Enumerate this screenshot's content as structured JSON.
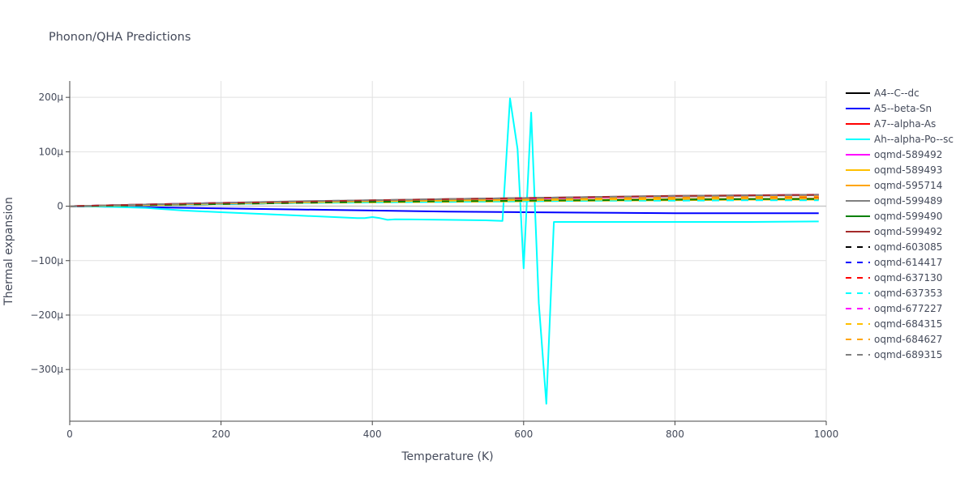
{
  "chart_data": {
    "type": "line",
    "title": "Phonon/QHA Predictions",
    "xlabel": "Temperature (K)",
    "ylabel": "Thermal expansion",
    "xlim": [
      0,
      1000
    ],
    "ylim": [
      -0.000395,
      0.00023
    ],
    "x_ticks": [
      0,
      200,
      400,
      600,
      800,
      1000
    ],
    "x_tick_labels": [
      "0",
      "200",
      "400",
      "600",
      "800",
      "1000"
    ],
    "y_ticks": [
      0.0002,
      0.0001,
      0,
      -0.0001,
      -0.0002,
      -0.0003
    ],
    "y_tick_labels": [
      "200μ",
      "100μ",
      "0",
      "−100μ",
      "−200μ",
      "−300μ"
    ],
    "grid": true,
    "legend_position": "right",
    "series": [
      {
        "name": "A4--C--dc",
        "color": "#000000",
        "dash": "solid",
        "x": [
          0,
          100,
          200,
          300,
          400,
          500,
          600,
          700,
          800,
          900,
          990
        ],
        "y": [
          0,
          3e-06,
          5e-06,
          7e-06,
          9e-06,
          1e-05,
          1.1e-05,
          1.2e-05,
          1.3e-05,
          1.3e-05,
          1.4e-05
        ]
      },
      {
        "name": "A5--beta-Sn",
        "color": "#0000ff",
        "dash": "solid",
        "x": [
          0,
          100,
          200,
          300,
          400,
          500,
          600,
          700,
          800,
          900,
          990
        ],
        "y": [
          0,
          -2e-06,
          -4e-06,
          -6e-06,
          -8e-06,
          -1e-05,
          -1.1e-05,
          -1.2e-05,
          -1.3e-05,
          -1.3e-05,
          -1.3e-05
        ]
      },
      {
        "name": "A7--alpha-As",
        "color": "#ff0000",
        "dash": "solid",
        "x": [
          0,
          100,
          200,
          300,
          400,
          500,
          600,
          700,
          800,
          900,
          990
        ],
        "y": [
          0,
          2e-06,
          4e-06,
          6e-06,
          8e-06,
          9e-06,
          1e-05,
          1.1e-05,
          1.2e-05,
          1.3e-05,
          1.4e-05
        ]
      },
      {
        "name": "Ah--alpha-Po--sc",
        "color": "#00ffff",
        "dash": "solid",
        "x": [
          0,
          50,
          100,
          140,
          150,
          200,
          250,
          300,
          350,
          380,
          390,
          400,
          410,
          420,
          430,
          500,
          550,
          572,
          582,
          592,
          600,
          610,
          620,
          630,
          640,
          700,
          800,
          900,
          990
        ],
        "y": [
          0,
          -1e-06,
          -3e-06,
          -7e-06,
          -8e-06,
          -1.1e-05,
          -1.4e-05,
          -1.7e-05,
          -2e-05,
          -2.2e-05,
          -2.2e-05,
          -2e-05,
          -2.2e-05,
          -2.5e-05,
          -2.4e-05,
          -2.5e-05,
          -2.6e-05,
          -2.7e-05,
          0.000198,
          0.000105,
          -0.000114,
          0.000172,
          -0.000178,
          -0.000363,
          -2.9e-05,
          -2.9e-05,
          -2.9e-05,
          -2.9e-05,
          -2.8e-05
        ]
      },
      {
        "name": "oqmd-589492",
        "color": "#ff00ff",
        "dash": "solid",
        "x": [
          0,
          100,
          200,
          300,
          400,
          500,
          600,
          700,
          800,
          900,
          990
        ],
        "y": [
          0,
          3e-06,
          6e-06,
          8e-06,
          1e-05,
          1.2e-05,
          1.4e-05,
          1.6e-05,
          1.8e-05,
          2e-05,
          2.1e-05
        ]
      },
      {
        "name": "oqmd-589493",
        "color": "#ffc000",
        "dash": "solid",
        "x": [
          0,
          100,
          200,
          300,
          400,
          500,
          600,
          700,
          800,
          900,
          990
        ],
        "y": [
          0,
          2e-06,
          4e-06,
          6e-06,
          7e-06,
          8e-06,
          9e-06,
          1e-05,
          1.1e-05,
          1.2e-05,
          1.2e-05
        ]
      },
      {
        "name": "oqmd-595714",
        "color": "#ffa500",
        "dash": "solid",
        "x": [
          0,
          100,
          200,
          300,
          400,
          500,
          600,
          700,
          800,
          900,
          990
        ],
        "y": [
          0,
          2e-06,
          5e-06,
          7e-06,
          8e-06,
          1e-05,
          1.1e-05,
          1.2e-05,
          1.3e-05,
          1.3e-05,
          1.4e-05
        ]
      },
      {
        "name": "oqmd-599489",
        "color": "#808080",
        "dash": "solid",
        "x": [
          0,
          100,
          200,
          300,
          400,
          500,
          600,
          700,
          800,
          900,
          990
        ],
        "y": [
          0,
          3e-06,
          6e-06,
          9e-06,
          1.1e-05,
          1.3e-05,
          1.5e-05,
          1.7e-05,
          1.8e-05,
          1.9e-05,
          2e-05
        ]
      },
      {
        "name": "oqmd-599490",
        "color": "#008000",
        "dash": "solid",
        "x": [
          0,
          100,
          200,
          300,
          400,
          500,
          600,
          700,
          800,
          900,
          990
        ],
        "y": [
          0,
          2e-06,
          4e-06,
          6e-06,
          8e-06,
          9e-06,
          1e-05,
          1.1e-05,
          1.2e-05,
          1.3e-05,
          1.3e-05
        ]
      },
      {
        "name": "oqmd-599492",
        "color": "#a52a2a",
        "dash": "solid",
        "x": [
          0,
          100,
          200,
          300,
          400,
          500,
          600,
          700,
          800,
          900,
          990
        ],
        "y": [
          0,
          3e-06,
          6e-06,
          8e-06,
          1.1e-05,
          1.3e-05,
          1.5e-05,
          1.7e-05,
          1.9e-05,
          2e-05,
          2.1e-05
        ]
      },
      {
        "name": "oqmd-603085",
        "color": "#000000",
        "dash": "dash",
        "x": [
          0,
          100,
          200,
          300,
          400,
          500,
          600,
          700,
          800,
          900,
          990
        ],
        "y": [
          0,
          2e-06,
          5e-06,
          7e-06,
          9e-06,
          1e-05,
          1.2e-05,
          1.3e-05,
          1.4e-05,
          1.5e-05,
          1.5e-05
        ]
      },
      {
        "name": "oqmd-614417",
        "color": "#0000ff",
        "dash": "dash",
        "x": [
          0,
          100,
          200,
          300,
          400,
          500,
          600,
          700,
          800,
          900,
          990
        ],
        "y": [
          0,
          2e-06,
          4e-06,
          6e-06,
          8e-06,
          9e-06,
          1e-05,
          1.1e-05,
          1.2e-05,
          1.2e-05,
          1.3e-05
        ]
      },
      {
        "name": "oqmd-637130",
        "color": "#ff0000",
        "dash": "dash",
        "x": [
          0,
          100,
          200,
          300,
          400,
          500,
          600,
          700,
          800,
          900,
          990
        ],
        "y": [
          0,
          3e-06,
          5e-06,
          7e-06,
          9e-06,
          1.1e-05,
          1.2e-05,
          1.4e-05,
          1.5e-05,
          1.6e-05,
          1.7e-05
        ]
      },
      {
        "name": "oqmd-637353",
        "color": "#00ffff",
        "dash": "dash",
        "x": [
          0,
          100,
          200,
          300,
          400,
          500,
          600,
          700,
          800,
          900,
          990
        ],
        "y": [
          0,
          2e-06,
          4e-06,
          6e-06,
          7e-06,
          8e-06,
          9e-06,
          1e-05,
          1e-05,
          1.1e-05,
          1.1e-05
        ]
      },
      {
        "name": "oqmd-677227",
        "color": "#ff00ff",
        "dash": "dash",
        "x": [
          0,
          100,
          200,
          300,
          400,
          500,
          600,
          700,
          800,
          900,
          990
        ],
        "y": [
          0,
          3e-06,
          6e-06,
          8e-06,
          1e-05,
          1.2e-05,
          1.4e-05,
          1.5e-05,
          1.7e-05,
          1.8e-05,
          1.9e-05
        ]
      },
      {
        "name": "oqmd-684315",
        "color": "#ffc000",
        "dash": "dash",
        "x": [
          0,
          100,
          200,
          300,
          400,
          500,
          600,
          700,
          800,
          900,
          990
        ],
        "y": [
          0,
          2e-06,
          5e-06,
          7e-06,
          9e-06,
          1e-05,
          1.1e-05,
          1.2e-05,
          1.3e-05,
          1.4e-05,
          1.4e-05
        ]
      },
      {
        "name": "oqmd-684627",
        "color": "#ffa500",
        "dash": "dash",
        "x": [
          0,
          100,
          200,
          300,
          400,
          500,
          600,
          700,
          800,
          900,
          990
        ],
        "y": [
          0,
          3e-06,
          5e-06,
          8e-06,
          1e-05,
          1.2e-05,
          1.3e-05,
          1.5e-05,
          1.6e-05,
          1.7e-05,
          1.8e-05
        ]
      },
      {
        "name": "oqmd-689315",
        "color": "#808080",
        "dash": "dash",
        "x": [
          0,
          100,
          200,
          300,
          400,
          500,
          600,
          700,
          800,
          900,
          990
        ],
        "y": [
          0,
          3e-06,
          6e-06,
          9e-06,
          1.1e-05,
          1.3e-05,
          1.5e-05,
          1.7e-05,
          1.9e-05,
          2e-05,
          2.1e-05
        ]
      }
    ]
  }
}
